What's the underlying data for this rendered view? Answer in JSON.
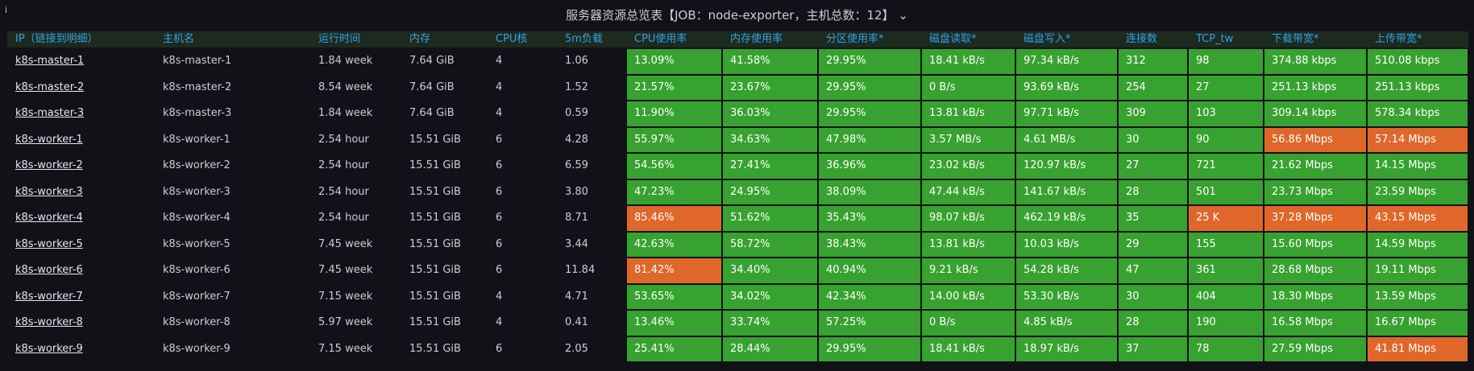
{
  "header": {
    "title": "服务器资源总览表【JOB：node-exporter，主机总数：12】"
  },
  "table": {
    "columns": [
      "IP（链接到明细）",
      "主机名",
      "运行时间",
      "内存",
      "CPU核",
      "5m负载",
      "CPU使用率",
      "内存使用率",
      "分区使用率*",
      "磁盘读取*",
      "磁盘写入*",
      "连接数",
      "TCP_tw",
      "下载带宽*",
      "上传带宽*"
    ],
    "rows": [
      [
        "k8s-master-1",
        "k8s-master-1",
        "1.84 week",
        "7.64 GiB",
        "4",
        "1.06",
        "13.09%",
        "41.58%",
        "29.95%",
        "18.41 kB/s",
        "97.34 kB/s",
        "312",
        "98",
        "374.88 kbps",
        "510.08 kbps"
      ],
      [
        "k8s-master-2",
        "k8s-master-2",
        "8.54 week",
        "7.64 GiB",
        "4",
        "1.52",
        "21.57%",
        "23.67%",
        "29.95%",
        "0 B/s",
        "93.69 kB/s",
        "254",
        "27",
        "251.13 kbps",
        "251.13 kbps"
      ],
      [
        "k8s-master-3",
        "k8s-master-3",
        "1.84 week",
        "7.64 GiB",
        "4",
        "0.59",
        "11.90%",
        "36.03%",
        "29.95%",
        "13.81 kB/s",
        "97.71 kB/s",
        "309",
        "103",
        "309.14 kbps",
        "578.34 kbps"
      ],
      [
        "k8s-worker-1",
        "k8s-worker-1",
        "2.54 hour",
        "15.51 GiB",
        "6",
        "4.28",
        "55.97%",
        "34.63%",
        "47.98%",
        "3.57 MB/s",
        "4.61 MB/s",
        "30",
        "90",
        "56.86 Mbps",
        "57.14 Mbps"
      ],
      [
        "k8s-worker-2",
        "k8s-worker-2",
        "2.54 hour",
        "15.51 GiB",
        "6",
        "6.59",
        "54.56%",
        "27.41%",
        "36.96%",
        "23.02 kB/s",
        "120.97 kB/s",
        "27",
        "721",
        "21.62 Mbps",
        "14.15 Mbps"
      ],
      [
        "k8s-worker-3",
        "k8s-worker-3",
        "2.54 hour",
        "15.51 GiB",
        "6",
        "3.80",
        "47.23%",
        "24.95%",
        "38.09%",
        "47.44 kB/s",
        "141.67 kB/s",
        "28",
        "501",
        "23.73 Mbps",
        "23.59 Mbps"
      ],
      [
        "k8s-worker-4",
        "k8s-worker-4",
        "2.54 hour",
        "15.51 GiB",
        "6",
        "8.71",
        "85.46%",
        "51.62%",
        "35.43%",
        "98.07 kB/s",
        "462.19 kB/s",
        "35",
        "25 K",
        "37.28 Mbps",
        "43.15 Mbps"
      ],
      [
        "k8s-worker-5",
        "k8s-worker-5",
        "7.45 week",
        "15.51 GiB",
        "6",
        "3.44",
        "42.63%",
        "58.72%",
        "38.43%",
        "13.81 kB/s",
        "10.03 kB/s",
        "29",
        "155",
        "15.60 Mbps",
        "14.59 Mbps"
      ],
      [
        "k8s-worker-6",
        "k8s-worker-6",
        "7.45 week",
        "15.51 GiB",
        "6",
        "11.84",
        "81.42%",
        "34.40%",
        "40.94%",
        "9.21 kB/s",
        "54.28 kB/s",
        "47",
        "361",
        "28.68 Mbps",
        "19.11 Mbps"
      ],
      [
        "k8s-worker-7",
        "k8s-worker-7",
        "7.15 week",
        "15.51 GiB",
        "4",
        "4.71",
        "53.65%",
        "34.02%",
        "42.34%",
        "14.00 kB/s",
        "53.30 kB/s",
        "30",
        "404",
        "18.30 Mbps",
        "13.59 Mbps"
      ],
      [
        "k8s-worker-8",
        "k8s-worker-8",
        "5.97 week",
        "15.51 GiB",
        "4",
        "0.41",
        "13.46%",
        "33.74%",
        "57.25%",
        "0 B/s",
        "4.85 kB/s",
        "28",
        "190",
        "16.58 Mbps",
        "16.67 Mbps"
      ],
      [
        "k8s-worker-9",
        "k8s-worker-9",
        "7.15 week",
        "15.51 GiB",
        "6",
        "2.05",
        "25.41%",
        "28.44%",
        "29.95%",
        "18.41 kB/s",
        "18.97 kB/s",
        "37",
        "78",
        "27.59 Mbps",
        "41.81 Mbps"
      ]
    ],
    "ok_color": "#37a22f",
    "warn_color": "#e0672a",
    "warn_cells": [
      [
        3,
        13
      ],
      [
        3,
        14
      ],
      [
        6,
        6
      ],
      [
        6,
        12
      ],
      [
        6,
        13
      ],
      [
        6,
        14
      ],
      [
        8,
        6
      ],
      [
        11,
        14
      ]
    ]
  }
}
